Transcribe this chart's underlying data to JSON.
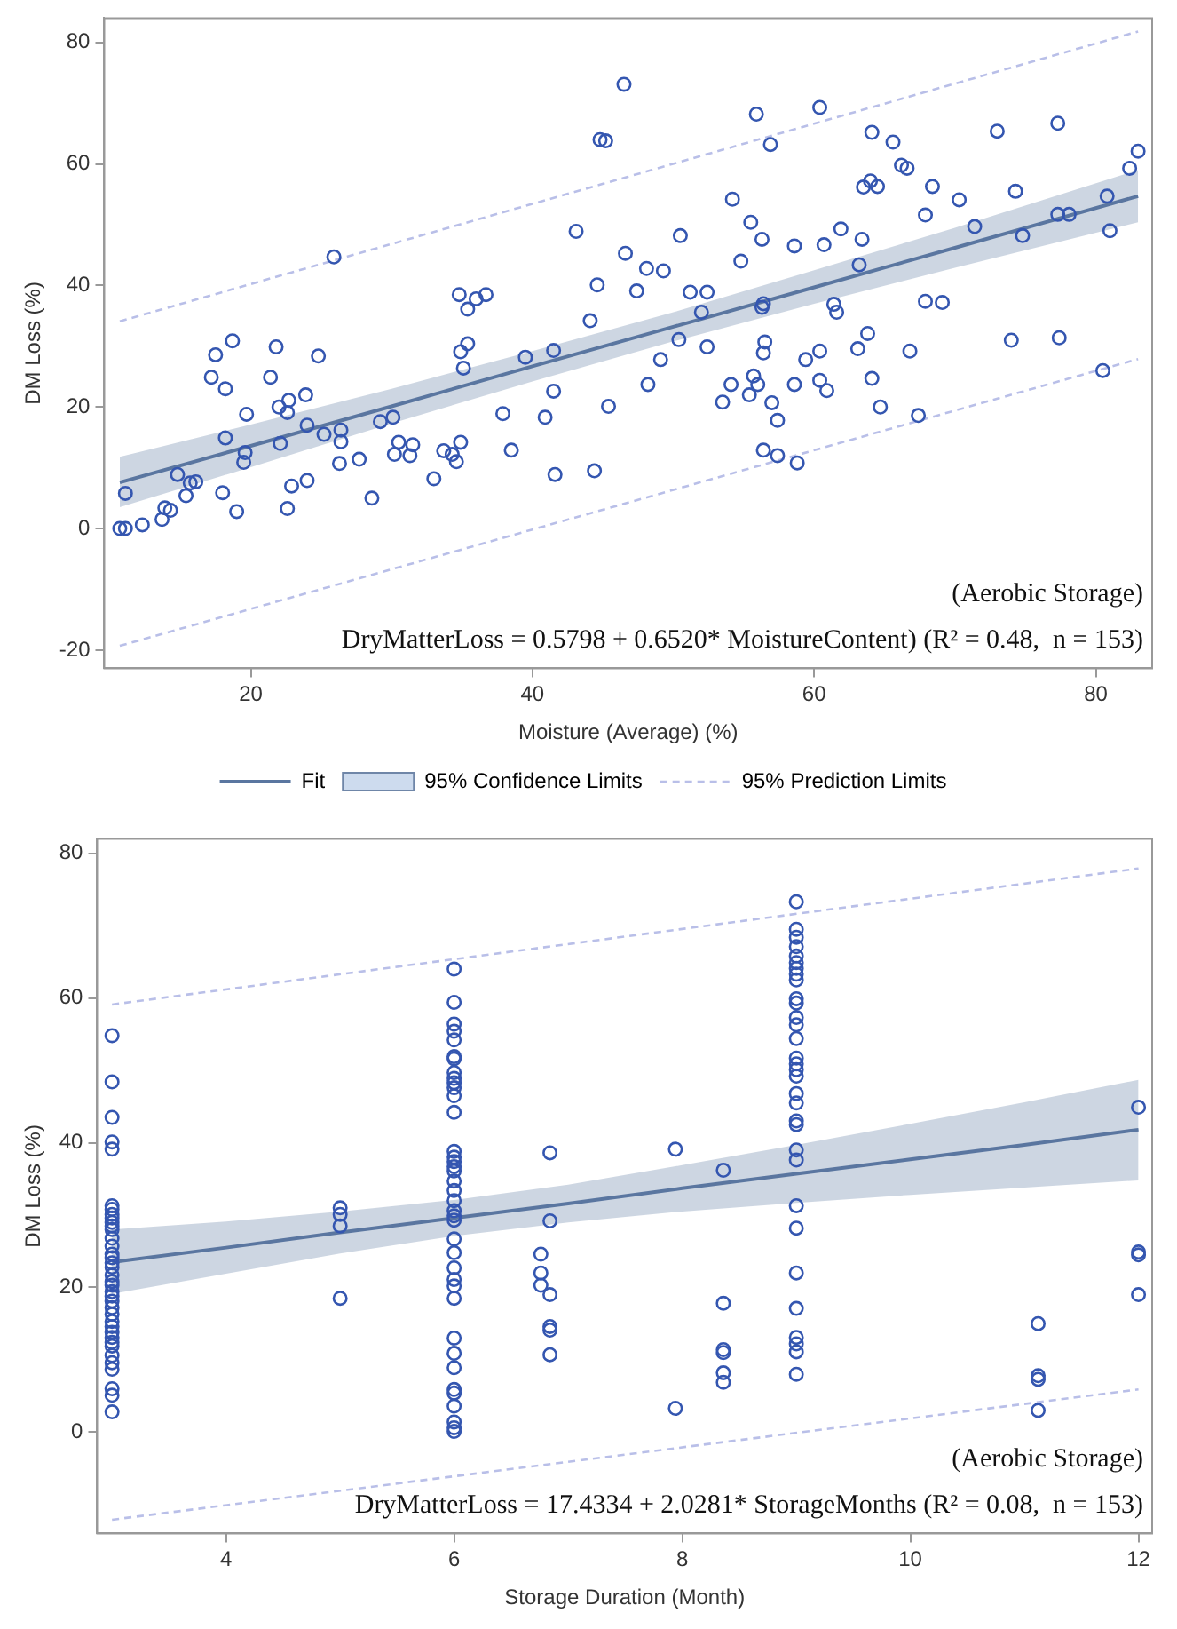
{
  "chart_data": [
    {
      "type": "scatter",
      "xlabel": "Moisture (Average) (%)",
      "ylabel": "DM Loss (%)",
      "xlim": [
        9.6,
        84
      ],
      "xticks": [
        20,
        40,
        60,
        80
      ],
      "ylim": [
        -23,
        84
      ],
      "yticks": [
        -20,
        0,
        20,
        40,
        60,
        80
      ],
      "grid": false,
      "legend": "bottom",
      "annotations": [
        "(Aerobic Storage)",
        "DryMatterLoss = 0.5798 + 0.6520* MoistureContent) (R² = 0.48,  n = 153)"
      ],
      "series": [
        {
          "name": "Fit",
          "type": "line",
          "color": "#5a76a0",
          "marker": "none",
          "line_style": "solid",
          "x": [
            10.7,
            20,
            30,
            40,
            50,
            60,
            70,
            83
          ],
          "values": [
            7.6,
            13.6,
            20.1,
            26.7,
            33.2,
            39.7,
            46.2,
            54.7
          ],
          "lower": [
            3.5,
            10.1,
            17.3,
            24.2,
            30.8,
            37.0,
            42.9,
            50.4
          ],
          "upper": [
            11.8,
            17.1,
            23.0,
            29.2,
            35.6,
            42.5,
            49.5,
            59.0
          ]
        },
        {
          "name": "95% Confidence Limits",
          "type": "area",
          "color": "#cddbee"
        },
        {
          "name": "95% Prediction Limits",
          "type": "line",
          "color": "#b9bfe8",
          "marker": "none",
          "line_style": "dashed",
          "x": [
            10.7,
            83
          ],
          "values": [
            34.1,
            81.8
          ]
        },
        {
          "type": "line",
          "color": "#b9bfe8",
          "marker": "none",
          "line_style": "dashed",
          "x": [
            10.7,
            83
          ],
          "values": [
            -19.3,
            27.9
          ]
        },
        {
          "type": "scatter",
          "color": "#3456b0",
          "marker": "circle",
          "x": [
            10.7,
            11.1,
            11.1,
            12.3,
            13.7,
            13.9,
            14.3,
            14.8,
            15.4,
            15.7,
            16.1,
            17.2,
            17.5,
            18.0,
            18.2,
            18.2,
            18.7,
            19.0,
            19.6,
            19.5,
            19.7,
            21.4,
            21.8,
            22.0,
            22.1,
            22.6,
            22.7,
            22.6,
            22.9,
            23.9,
            24.0,
            24.0,
            24.8,
            25.2,
            25.9,
            26.4,
            26.4,
            26.3,
            27.7,
            28.6,
            29.2,
            30.1,
            30.2,
            30.5,
            31.3,
            31.5,
            33.0,
            33.7,
            34.3,
            34.6,
            34.9,
            34.8,
            34.9,
            35.1,
            35.4,
            35.4,
            36.0,
            36.7,
            37.9,
            38.5,
            39.5,
            40.9,
            41.5,
            41.5,
            41.6,
            43.1,
            44.1,
            44.6,
            44.4,
            44.8,
            45.2,
            46.5,
            45.4,
            46.6,
            47.4,
            48.1,
            48.2,
            49.1,
            49.3,
            50.4,
            50.5,
            51.2,
            52.0,
            52.4,
            52.4,
            53.5,
            54.1,
            54.2,
            54.8,
            55.4,
            55.5,
            55.9,
            55.7,
            56.0,
            56.3,
            56.3,
            56.4,
            56.5,
            56.4,
            56.4,
            56.9,
            57.0,
            57.4,
            57.4,
            58.6,
            58.6,
            58.8,
            59.4,
            60.4,
            60.4,
            60.4,
            60.7,
            60.9,
            61.4,
            61.6,
            61.9,
            63.1,
            63.2,
            63.4,
            63.5,
            63.8,
            64.0,
            64.1,
            64.1,
            64.5,
            64.7,
            65.6,
            66.2,
            66.6,
            66.8,
            67.4,
            67.9,
            67.9,
            68.4,
            69.1,
            70.3,
            71.4,
            73.0,
            74.0,
            74.3,
            74.8,
            77.3,
            77.3,
            77.4,
            78.1,
            80.5,
            80.8,
            81.0,
            82.4,
            83.0
          ],
          "values": [
            0,
            0,
            5.8,
            0.6,
            1.5,
            3.4,
            3.0,
            8.9,
            5.4,
            7.5,
            7.7,
            24.9,
            28.6,
            5.9,
            23.0,
            14.9,
            30.9,
            2.8,
            12.5,
            10.9,
            18.8,
            24.9,
            29.9,
            20.0,
            14.0,
            19.1,
            21.1,
            3.3,
            7.0,
            22.0,
            17.0,
            7.9,
            28.4,
            15.5,
            44.7,
            16.2,
            14.3,
            10.7,
            11.4,
            5.0,
            17.6,
            18.3,
            12.2,
            14.2,
            12.0,
            13.8,
            8.2,
            12.8,
            12.2,
            11.0,
            14.2,
            38.5,
            29.1,
            26.4,
            30.4,
            36.1,
            37.8,
            38.5,
            18.9,
            12.9,
            28.2,
            18.3,
            29.3,
            22.6,
            8.9,
            48.9,
            34.2,
            40.1,
            9.5,
            64.0,
            63.8,
            73.1,
            20.1,
            45.3,
            39.1,
            42.8,
            23.7,
            27.8,
            42.4,
            31.1,
            48.2,
            38.9,
            35.6,
            38.9,
            29.9,
            20.8,
            23.7,
            54.2,
            44.0,
            22.0,
            50.4,
            68.2,
            25.1,
            23.7,
            47.6,
            36.4,
            37.0,
            30.7,
            28.9,
            12.9,
            63.2,
            20.7,
            17.8,
            12.0,
            46.5,
            23.7,
            10.8,
            27.8,
            69.3,
            29.2,
            24.4,
            46.7,
            22.7,
            36.9,
            35.6,
            49.3,
            29.6,
            43.4,
            47.6,
            56.2,
            32.1,
            57.2,
            65.2,
            24.7,
            56.3,
            20.0,
            63.6,
            59.8,
            59.3,
            29.2,
            18.6,
            51.6,
            37.4,
            56.3,
            37.2,
            54.1,
            49.7,
            65.4,
            31.0,
            55.5,
            48.2,
            66.7,
            51.7,
            31.4,
            51.7,
            26.0,
            54.7,
            49.0,
            59.3,
            62.1
          ]
        }
      ]
    },
    {
      "type": "scatter",
      "xlabel": "Storage Duration (Month)",
      "ylabel": "DM Loss (%)",
      "xlim": [
        2.87,
        12.12
      ],
      "xticks": [
        4,
        6,
        8,
        10,
        12
      ],
      "ylim": [
        -14,
        82
      ],
      "yticks": [
        0,
        20,
        40,
        60,
        80
      ],
      "grid": false,
      "annotations": [
        "(Aerobic Storage)",
        "DryMatterLoss = 17.4334 + 2.0281* StorageMonths (R² = 0.08,  n = 153)"
      ],
      "series": [
        {
          "type": "line",
          "color": "#5a76a0",
          "marker": "none",
          "line_style": "solid",
          "x": [
            3,
            4,
            5,
            6,
            7,
            8,
            9,
            10,
            11,
            12
          ],
          "values": [
            23.5,
            25.5,
            27.6,
            29.6,
            31.6,
            33.7,
            35.7,
            37.7,
            39.7,
            41.8
          ],
          "lower": [
            19.1,
            21.9,
            24.7,
            27.1,
            29.0,
            30.5,
            31.7,
            32.8,
            33.8,
            34.8
          ],
          "upper": [
            28.0,
            29.1,
            30.5,
            32.1,
            34.2,
            36.9,
            39.7,
            42.6,
            45.6,
            48.7
          ]
        },
        {
          "type": "line",
          "color": "#b9bfe8",
          "marker": "none",
          "line_style": "dashed",
          "x": [
            3,
            12
          ],
          "values": [
            59.1,
            77.9
          ]
        },
        {
          "type": "line",
          "color": "#b9bfe8",
          "marker": "none",
          "line_style": "dashed",
          "x": [
            3,
            12
          ],
          "values": [
            -12.1,
            5.9
          ]
        },
        {
          "type": "scatter",
          "color": "#3456b0",
          "marker": "circle",
          "x": [
            3,
            3,
            3,
            3,
            3,
            3,
            3,
            3,
            3,
            3,
            3,
            3,
            3,
            3,
            3,
            3,
            3,
            3,
            3,
            3,
            3,
            3,
            3,
            3,
            3,
            3,
            3,
            3,
            3,
            3,
            3,
            3,
            3,
            3,
            3,
            3,
            3,
            3,
            5,
            5,
            5,
            5,
            6,
            6,
            6,
            6,
            6,
            6,
            6,
            6,
            6,
            6,
            6,
            6,
            6,
            6,
            6,
            6,
            6,
            6,
            6,
            6,
            6,
            6,
            6,
            6,
            6,
            6,
            6,
            6,
            6,
            6,
            6,
            6,
            6,
            6,
            6,
            6,
            6,
            6,
            6,
            6.76,
            6.76,
            6.76,
            6.84,
            6.84,
            6.84,
            6.84,
            6.84,
            6.84,
            7.94,
            7.94,
            8.36,
            8.36,
            8.36,
            8.36,
            8.36,
            8.36,
            9,
            9,
            9,
            9,
            9,
            9,
            9,
            9,
            9,
            9,
            9,
            9,
            9,
            9,
            9,
            9,
            9,
            9,
            9,
            9,
            9,
            9,
            9,
            9,
            9,
            9,
            9,
            9,
            9,
            9,
            9,
            9,
            11.12,
            11.12,
            11.12,
            11.12,
            12,
            12,
            12,
            12
          ],
          "values": [
            54.8,
            48.4,
            43.5,
            40.1,
            39.1,
            31.3,
            30.8,
            30.1,
            29.6,
            29.0,
            28.5,
            28.0,
            26.8,
            25.7,
            24.6,
            24.1,
            23.4,
            22.8,
            21.7,
            20.8,
            20.3,
            19.4,
            18.8,
            18.1,
            17.2,
            16.3,
            15.3,
            14.6,
            13.8,
            13.1,
            12.4,
            11.9,
            10.6,
            9.6,
            8.7,
            6.0,
            5.1,
            2.8,
            31.0,
            30.1,
            28.5,
            18.5,
            64.0,
            59.4,
            56.4,
            55.4,
            54.2,
            51.9,
            51.6,
            49.7,
            48.9,
            48.3,
            47.6,
            46.5,
            44.2,
            38.8,
            38.0,
            37.4,
            36.7,
            36.1,
            34.7,
            33.4,
            32.0,
            30.6,
            29.9,
            29.3,
            26.7,
            24.8,
            22.7,
            21.1,
            20.2,
            18.5,
            13.0,
            10.9,
            8.9,
            5.9,
            5.4,
            3.6,
            1.4,
            0.6,
            0.1,
            24.6,
            22.0,
            20.3,
            38.6,
            29.2,
            19.0,
            14.6,
            14.1,
            10.7,
            39.1,
            3.3,
            36.2,
            17.8,
            11.4,
            11.0,
            8.2,
            6.9,
            73.3,
            69.5,
            68.4,
            67.1,
            65.8,
            64.9,
            64.1,
            63.3,
            62.5,
            59.9,
            59.3,
            57.3,
            56.3,
            54.4,
            51.7,
            50.9,
            50.1,
            49.2,
            46.8,
            45.5,
            43.0,
            42.5,
            39.0,
            37.6,
            31.3,
            28.2,
            22.0,
            17.1,
            13.1,
            12.2,
            11.1,
            8.0,
            15.0,
            7.8,
            7.3,
            3.0,
            44.9,
            24.9,
            24.5,
            19.0
          ]
        }
      ]
    }
  ]
}
